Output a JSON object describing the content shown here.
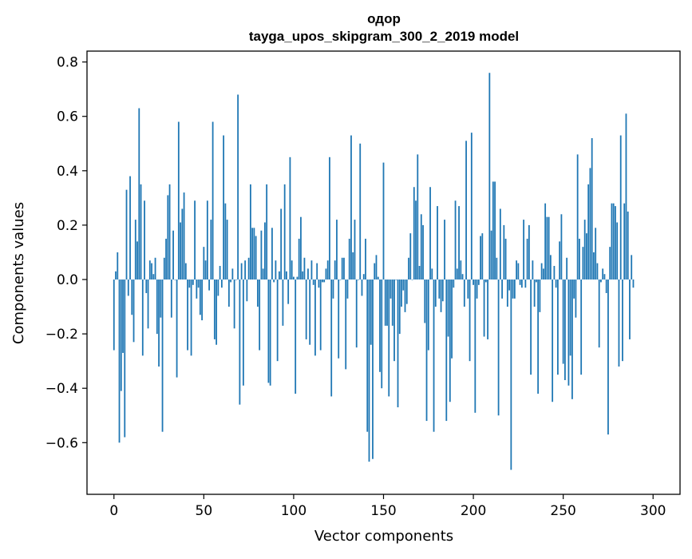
{
  "chart_data": {
    "type": "bar",
    "title": "одор",
    "subtitle": "tayga_upos_skipgram_300_2_2019 model",
    "xlabel": "Vector components",
    "ylabel": "Components values",
    "xlim": [
      -15,
      315
    ],
    "ylim": [
      -0.79,
      0.84
    ],
    "xticks": [
      0,
      50,
      100,
      150,
      200,
      250,
      300
    ],
    "yticks": [
      -0.6,
      -0.4,
      -0.2,
      0.0,
      0.2,
      0.4,
      0.6,
      0.8
    ],
    "ytick_labels": [
      "−0.6",
      "−0.4",
      "−0.2",
      "0.0",
      "0.2",
      "0.4",
      "0.6",
      "0.8"
    ],
    "bar_color": "#1f77b4",
    "grid": false,
    "values": [
      -0.26,
      0.03,
      0.1,
      -0.6,
      -0.41,
      -0.27,
      -0.58,
      0.33,
      -0.06,
      0.38,
      -0.13,
      -0.23,
      0.22,
      0.14,
      0.63,
      0.35,
      -0.28,
      0.29,
      -0.05,
      -0.18,
      0.07,
      0.06,
      0.02,
      0.08,
      -0.2,
      -0.32,
      -0.14,
      -0.56,
      0.08,
      0.15,
      0.31,
      0.35,
      -0.14,
      0.18,
      0.0,
      -0.36,
      0.58,
      0.21,
      0.26,
      0.32,
      0.06,
      -0.26,
      -0.03,
      -0.28,
      -0.02,
      0.29,
      -0.07,
      -0.03,
      -0.13,
      -0.15,
      0.12,
      0.07,
      0.29,
      -0.04,
      0.22,
      0.58,
      -0.22,
      -0.24,
      -0.06,
      0.05,
      -0.03,
      0.53,
      0.28,
      0.22,
      -0.1,
      -0.01,
      0.04,
      -0.18,
      0.0,
      0.68,
      -0.46,
      0.06,
      -0.39,
      0.07,
      -0.08,
      0.08,
      0.35,
      0.19,
      0.19,
      0.16,
      -0.1,
      -0.26,
      0.18,
      0.04,
      0.21,
      0.35,
      -0.38,
      -0.39,
      0.19,
      -0.01,
      0.07,
      -0.3,
      0.03,
      0.26,
      -0.17,
      0.35,
      0.03,
      -0.09,
      0.45,
      0.07,
      0.01,
      -0.42,
      0.01,
      0.15,
      0.23,
      0.03,
      0.08,
      -0.22,
      0.04,
      -0.24,
      0.07,
      -0.02,
      -0.28,
      0.06,
      -0.03,
      -0.26,
      -0.01,
      -0.01,
      0.04,
      0.07,
      0.45,
      -0.43,
      -0.07,
      0.07,
      0.22,
      -0.29,
      0.0,
      0.08,
      0.08,
      -0.33,
      -0.07,
      0.15,
      0.53,
      0.1,
      0.22,
      -0.25,
      0.0,
      0.5,
      -0.06,
      0.02,
      0.15,
      -0.56,
      -0.67,
      -0.24,
      -0.66,
      0.06,
      0.09,
      0.01,
      -0.34,
      -0.4,
      0.43,
      -0.17,
      -0.17,
      -0.43,
      -0.07,
      -0.17,
      -0.3,
      0.0,
      -0.47,
      -0.2,
      -0.1,
      -0.04,
      -0.12,
      -0.09,
      0.08,
      0.17,
      0.0,
      0.34,
      0.29,
      0.46,
      0.05,
      0.24,
      0.2,
      -0.16,
      -0.52,
      -0.26,
      0.34,
      0.04,
      -0.56,
      -0.1,
      0.27,
      -0.07,
      -0.12,
      -0.08,
      0.22,
      -0.52,
      -0.21,
      -0.45,
      -0.29,
      -0.03,
      0.29,
      0.04,
      0.27,
      0.07,
      0.02,
      -0.1,
      0.51,
      -0.07,
      -0.3,
      0.54,
      -0.02,
      -0.49,
      -0.07,
      -0.02,
      0.16,
      0.17,
      -0.21,
      -0.01,
      -0.22,
      0.76,
      0.18,
      0.36,
      0.36,
      0.08,
      -0.5,
      0.26,
      -0.07,
      0.2,
      0.15,
      -0.1,
      -0.04,
      -0.7,
      -0.07,
      -0.07,
      0.07,
      0.06,
      -0.02,
      -0.03,
      0.22,
      -0.03,
      0.15,
      0.2,
      -0.35,
      0.07,
      -0.1,
      -0.01,
      -0.42,
      -0.12,
      0.06,
      0.04,
      0.28,
      0.23,
      0.23,
      0.09,
      -0.45,
      0.05,
      -0.03,
      -0.35,
      0.14,
      0.24,
      -0.31,
      -0.37,
      0.08,
      -0.39,
      -0.28,
      -0.44,
      -0.07,
      -0.14,
      0.46,
      0.15,
      -0.35,
      0.12,
      0.22,
      0.17,
      0.35,
      0.41,
      0.52,
      0.1,
      0.19,
      0.06,
      -0.25,
      -0.01,
      0.04,
      0.02,
      -0.05,
      -0.57,
      0.12,
      0.28,
      0.28,
      0.27,
      0.21,
      -0.32,
      0.53,
      -0.3,
      0.28,
      0.61,
      0.25,
      -0.22,
      0.09,
      -0.03
    ]
  }
}
